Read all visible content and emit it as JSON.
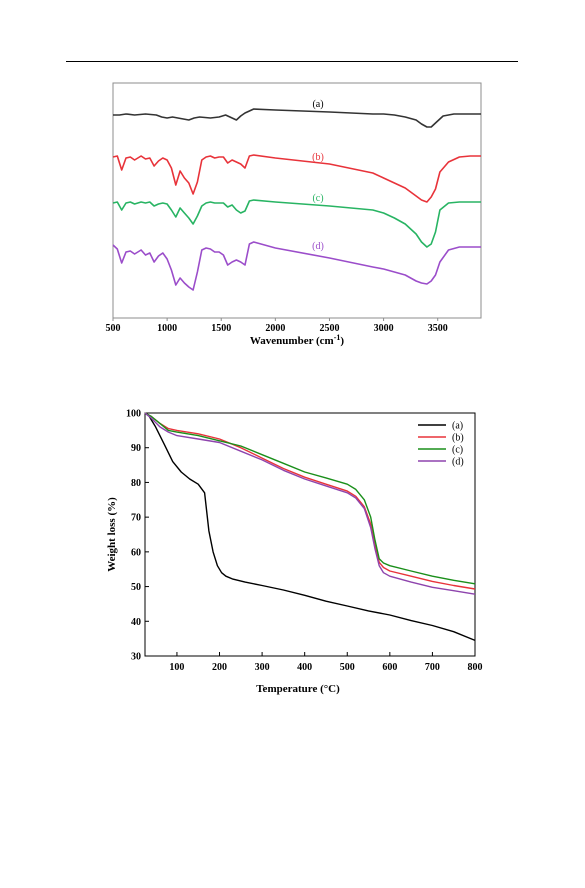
{
  "chart_data": [
    {
      "type": "line",
      "xlabel": "Wavenumber (cm",
      "xlabel_sup": "-1",
      "xlabel_end": ")",
      "xlim": [
        500,
        3900
      ],
      "xticks": [
        "500",
        "1000",
        "1500",
        "2000",
        "2500",
        "3000",
        "3500"
      ],
      "xtick_values": [
        500,
        1000,
        1500,
        2000,
        2500,
        3000,
        3500
      ],
      "y_axis_shown": false,
      "series": [
        {
          "name": "(a)",
          "color": "#333333",
          "x": [
            500,
            560,
            620,
            700,
            800,
            900,
            950,
            1000,
            1050,
            1100,
            1200,
            1250,
            1300,
            1400,
            1480,
            1540,
            1600,
            1640,
            1680,
            1720,
            1760,
            1800,
            2000,
            2500,
            2900,
            3000,
            3100,
            3200,
            3300,
            3350,
            3400,
            3440,
            3480,
            3550,
            3650,
            3800,
            3900
          ],
          "y": [
            115,
            115,
            114,
            115,
            114,
            115,
            117,
            118,
            117,
            118,
            120,
            118,
            117,
            118,
            117,
            115,
            118,
            120,
            116,
            113,
            111,
            109,
            110,
            112,
            114,
            114,
            115,
            117,
            120,
            124,
            127,
            127,
            123,
            116,
            114,
            114,
            114
          ]
        },
        {
          "name": "(b)",
          "color": "#e8333a",
          "x": [
            500,
            540,
            580,
            620,
            660,
            700,
            760,
            800,
            840,
            880,
            920,
            960,
            1000,
            1040,
            1080,
            1120,
            1160,
            1200,
            1240,
            1280,
            1320,
            1360,
            1400,
            1440,
            1480,
            1520,
            1560,
            1600,
            1640,
            1680,
            1720,
            1760,
            1800,
            2000,
            2500,
            2900,
            3000,
            3100,
            3200,
            3300,
            3350,
            3400,
            3440,
            3480,
            3520,
            3600,
            3700,
            3800,
            3900
          ],
          "y": [
            157,
            156,
            170,
            158,
            157,
            160,
            156,
            159,
            158,
            166,
            161,
            158,
            160,
            168,
            185,
            171,
            178,
            183,
            194,
            182,
            160,
            157,
            156,
            158,
            157,
            157,
            163,
            160,
            162,
            164,
            168,
            156,
            155,
            158,
            164,
            173,
            178,
            183,
            188,
            196,
            200,
            202,
            197,
            189,
            172,
            162,
            157,
            156,
            156
          ]
        },
        {
          "name": "(c)",
          "color": "#28b463",
          "x": [
            500,
            540,
            580,
            620,
            660,
            700,
            760,
            800,
            840,
            880,
            920,
            960,
            1000,
            1040,
            1080,
            1120,
            1160,
            1200,
            1240,
            1280,
            1320,
            1360,
            1400,
            1440,
            1480,
            1520,
            1560,
            1600,
            1640,
            1680,
            1720,
            1760,
            1800,
            2000,
            2500,
            2900,
            3000,
            3100,
            3200,
            3300,
            3350,
            3400,
            3440,
            3480,
            3520,
            3600,
            3700,
            3800,
            3900
          ],
          "y": [
            203,
            202,
            210,
            203,
            202,
            204,
            202,
            203,
            202,
            206,
            204,
            203,
            204,
            210,
            217,
            208,
            213,
            218,
            224,
            216,
            206,
            203,
            202,
            203,
            203,
            203,
            207,
            205,
            210,
            213,
            211,
            201,
            200,
            202,
            206,
            210,
            213,
            218,
            224,
            234,
            242,
            247,
            244,
            232,
            210,
            203,
            202,
            202,
            202
          ]
        },
        {
          "name": "(d)",
          "color": "#9b4dca",
          "x": [
            500,
            540,
            580,
            620,
            660,
            700,
            760,
            800,
            840,
            880,
            920,
            960,
            1000,
            1040,
            1080,
            1120,
            1160,
            1200,
            1240,
            1280,
            1320,
            1360,
            1400,
            1440,
            1480,
            1520,
            1560,
            1600,
            1640,
            1680,
            1720,
            1760,
            1800,
            2000,
            2500,
            2900,
            3000,
            3100,
            3200,
            3300,
            3350,
            3400,
            3440,
            3480,
            3520,
            3600,
            3700,
            3800,
            3900
          ],
          "y": [
            245,
            249,
            263,
            252,
            251,
            254,
            250,
            255,
            253,
            262,
            256,
            253,
            259,
            270,
            285,
            278,
            283,
            287,
            290,
            272,
            250,
            248,
            249,
            252,
            252,
            255,
            265,
            262,
            260,
            262,
            265,
            244,
            242,
            248,
            258,
            267,
            269,
            272,
            275,
            281,
            283,
            284,
            281,
            275,
            262,
            250,
            247,
            247,
            247
          ]
        }
      ],
      "y_units_note": "offset trace"
    },
    {
      "type": "line",
      "xlabel": "Temperature (°C)",
      "ylabel": "Weight loss (%)",
      "xlim": [
        25,
        800
      ],
      "ylim": [
        30,
        100
      ],
      "xticks": [
        100,
        200,
        300,
        400,
        500,
        600,
        700,
        800
      ],
      "yticks": [
        30,
        40,
        50,
        60,
        70,
        80,
        90,
        100
      ],
      "legend_position": "top-right",
      "series": [
        {
          "name": "(a)",
          "color": "#000000",
          "x": [
            25,
            35,
            50,
            70,
            90,
            110,
            130,
            150,
            165,
            175,
            185,
            195,
            205,
            215,
            230,
            260,
            300,
            350,
            400,
            450,
            500,
            550,
            600,
            650,
            700,
            750,
            800
          ],
          "y": [
            100,
            99,
            96,
            91,
            86,
            83,
            81,
            79.5,
            77,
            66,
            60,
            56,
            54,
            53,
            52.2,
            51.3,
            50.3,
            49,
            47.5,
            45.8,
            44.4,
            43,
            41.8,
            40.2,
            38.8,
            37,
            34.5
          ]
        },
        {
          "name": "(b)",
          "color": "#e8333a",
          "x": [
            25,
            40,
            60,
            80,
            100,
            150,
            200,
            250,
            300,
            350,
            400,
            450,
            500,
            520,
            540,
            555,
            565,
            575,
            585,
            600,
            650,
            700,
            750,
            800
          ],
          "y": [
            100,
            99,
            97,
            95.5,
            95,
            94,
            92.5,
            90,
            87,
            84,
            81.5,
            79.5,
            77.5,
            76,
            73,
            68,
            62,
            57,
            55.5,
            54.5,
            53,
            51.5,
            50.3,
            49.3
          ]
        },
        {
          "name": "(c)",
          "color": "#1a8f1a",
          "x": [
            25,
            40,
            60,
            80,
            100,
            150,
            200,
            250,
            300,
            350,
            400,
            450,
            500,
            520,
            540,
            555,
            565,
            575,
            585,
            600,
            650,
            700,
            750,
            800
          ],
          "y": [
            100,
            99,
            97,
            95,
            94.5,
            93.5,
            92,
            90.5,
            88,
            85.5,
            83,
            81.3,
            79.5,
            78,
            75,
            70,
            63.5,
            58,
            56.8,
            56,
            54.5,
            53,
            51.8,
            50.8
          ]
        },
        {
          "name": "(d)",
          "color": "#8e44ad",
          "x": [
            25,
            40,
            60,
            80,
            100,
            150,
            200,
            250,
            300,
            350,
            400,
            450,
            500,
            520,
            540,
            555,
            565,
            575,
            585,
            600,
            650,
            700,
            750,
            800
          ],
          "y": [
            100,
            98.5,
            96,
            94.5,
            93.5,
            92.5,
            91.5,
            89,
            86.5,
            83.5,
            81,
            79,
            77,
            75.5,
            72.5,
            67,
            61,
            56,
            54,
            53,
            51.3,
            49.8,
            48.8,
            47.8
          ]
        }
      ]
    }
  ]
}
